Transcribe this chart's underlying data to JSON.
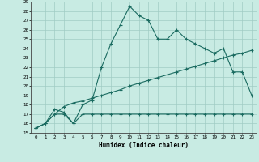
{
  "xlabel": "Humidex (Indice chaleur)",
  "xlim": [
    -0.5,
    23.5
  ],
  "ylim": [
    15,
    29
  ],
  "xticks": [
    0,
    1,
    2,
    3,
    4,
    5,
    6,
    7,
    8,
    9,
    10,
    11,
    12,
    13,
    14,
    15,
    16,
    17,
    18,
    19,
    20,
    21,
    22,
    23
  ],
  "yticks": [
    15,
    16,
    17,
    18,
    19,
    20,
    21,
    22,
    23,
    24,
    25,
    26,
    27,
    28,
    29
  ],
  "bg_color": "#c8ebe3",
  "line_color": "#1a6b60",
  "grid_color": "#a0ccc4",
  "line1_x": [
    0,
    1,
    2,
    3,
    4,
    5,
    6,
    7,
    8,
    9,
    10,
    11,
    12,
    13,
    14,
    15,
    16,
    17,
    18,
    19,
    20,
    21,
    22,
    23
  ],
  "line1_y": [
    15.5,
    16.0,
    17.0,
    17.0,
    16.0,
    18.0,
    18.5,
    22.0,
    24.5,
    26.5,
    28.5,
    27.5,
    27.0,
    25.0,
    25.0,
    26.0,
    25.0,
    24.5,
    24.0,
    23.5,
    24.0,
    21.5,
    21.5,
    19.0
  ],
  "line2_x": [
    0,
    1,
    2,
    3,
    4,
    5,
    6,
    7,
    8,
    9,
    10,
    11,
    12,
    13,
    14,
    15,
    16,
    17,
    18,
    19,
    20,
    21,
    22,
    23
  ],
  "line2_y": [
    15.5,
    16.0,
    17.5,
    17.2,
    16.0,
    17.0,
    17.0,
    17.0,
    17.0,
    17.0,
    17.0,
    17.0,
    17.0,
    17.0,
    17.0,
    17.0,
    17.0,
    17.0,
    17.0,
    17.0,
    17.0,
    17.0,
    17.0,
    17.0
  ],
  "line3_x": [
    0,
    1,
    2,
    3,
    4,
    5,
    6,
    7,
    8,
    9,
    10,
    11,
    12,
    13,
    14,
    15,
    16,
    17,
    18,
    19,
    20,
    21,
    22,
    23
  ],
  "line3_y": [
    15.5,
    16.0,
    17.0,
    17.8,
    18.2,
    18.4,
    18.7,
    19.0,
    19.3,
    19.6,
    20.0,
    20.3,
    20.6,
    20.9,
    21.2,
    21.5,
    21.8,
    22.1,
    22.4,
    22.7,
    23.0,
    23.3,
    23.5,
    23.8
  ]
}
